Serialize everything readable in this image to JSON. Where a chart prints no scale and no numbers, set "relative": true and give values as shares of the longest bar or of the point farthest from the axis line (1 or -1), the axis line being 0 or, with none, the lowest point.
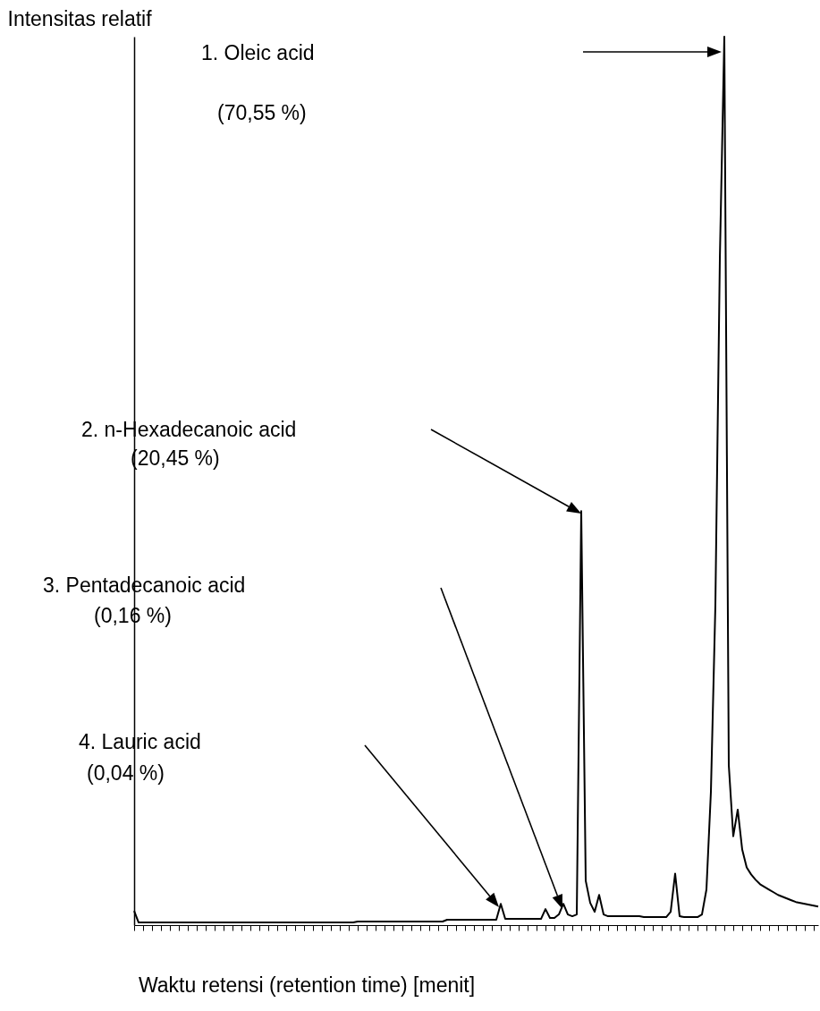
{
  "chart_data": {
    "type": "line",
    "relative": true,
    "xlabel": "Waktu retensi (retention time) [menit]",
    "ylabel": "Intensitas relatif",
    "annotations": [
      "1. Oleic acid",
      "(70,55 %)",
      "2. n-Hexadecanoic acid",
      "(20,45 %)",
      "3. Pentadecanoic acid",
      "(0,16 %)",
      "4. Lauric acid",
      "(0,04 %)"
    ],
    "categories": [
      null,
      null,
      null,
      null,
      null,
      null,
      null,
      null,
      null,
      null,
      null,
      null,
      null,
      null,
      null,
      null,
      null,
      null,
      null,
      null,
      null,
      null,
      null,
      null,
      null,
      null,
      null,
      null,
      null,
      null,
      null,
      null,
      null,
      null,
      null,
      null,
      null,
      null,
      null,
      null,
      null,
      null,
      null,
      null,
      null,
      null,
      null,
      null,
      null,
      null,
      null,
      null,
      null,
      null,
      null,
      null,
      null,
      null,
      null,
      null,
      null,
      null,
      null,
      null,
      null,
      null,
      null,
      null,
      null,
      null,
      null,
      null,
      null,
      null,
      null,
      null,
      null,
      null,
      null,
      null,
      null,
      null,
      null,
      null,
      null,
      null,
      null,
      null,
      null,
      null,
      null,
      null,
      null,
      null,
      null,
      null,
      null,
      null,
      null,
      null,
      null,
      null,
      null,
      null,
      null,
      null,
      null,
      null,
      null,
      null,
      null,
      null,
      null,
      null,
      null,
      null,
      null,
      null,
      null,
      null,
      null,
      null,
      null,
      null,
      null,
      null,
      null,
      null,
      null,
      null,
      null,
      null,
      null,
      null,
      null,
      null,
      null,
      null,
      null,
      null,
      null,
      null,
      null,
      null,
      null,
      null,
      null,
      null,
      null,
      null,
      null,
      null,
      null,
      null
    ],
    "series": [
      {
        "color": "#000000",
        "values": [
          0.016,
          0.003,
          0.003,
          0.003,
          0.003,
          0.003,
          0.003,
          0.003,
          0.003,
          0.003,
          0.003,
          0.003,
          0.003,
          0.003,
          0.003,
          0.003,
          0.003,
          0.003,
          0.003,
          0.003,
          0.003,
          0.003,
          0.003,
          0.003,
          0.003,
          0.003,
          0.003,
          0.003,
          0.003,
          0.003,
          0.003,
          0.003,
          0.003,
          0.003,
          0.003,
          0.003,
          0.003,
          0.003,
          0.003,
          0.003,
          0.003,
          0.003,
          0.003,
          0.003,
          0.003,
          0.003,
          0.003,
          0.003,
          0.003,
          0.003,
          0.004,
          0.004,
          0.004,
          0.004,
          0.004,
          0.004,
          0.004,
          0.004,
          0.004,
          0.004,
          0.004,
          0.004,
          0.004,
          0.004,
          0.004,
          0.004,
          0.004,
          0.004,
          0.004,
          0.004,
          0.006,
          0.006,
          0.006,
          0.006,
          0.006,
          0.006,
          0.006,
          0.006,
          0.006,
          0.006,
          0.006,
          0.006,
          0.024,
          0.007,
          0.007,
          0.007,
          0.007,
          0.007,
          0.007,
          0.007,
          0.007,
          0.007,
          0.018,
          0.008,
          0.008,
          0.012,
          0.024,
          0.012,
          0.01,
          0.012,
          0.466,
          0.05,
          0.025,
          0.015,
          0.034,
          0.012,
          0.01,
          0.01,
          0.01,
          0.01,
          0.01,
          0.01,
          0.01,
          0.01,
          0.009,
          0.009,
          0.009,
          0.009,
          0.009,
          0.009,
          0.015,
          0.058,
          0.01,
          0.009,
          0.009,
          0.009,
          0.009,
          0.012,
          0.04,
          0.15,
          0.36,
          0.75,
          1,
          0.18,
          0.1,
          0.13,
          0.085,
          0.065,
          0.057,
          0.051,
          0.046,
          0.043,
          0.04,
          0.037,
          0.034,
          0.032,
          0.03,
          0.028,
          0.026,
          0.025,
          0.024,
          0.023,
          0.022,
          0.021
        ]
      }
    ]
  }
}
